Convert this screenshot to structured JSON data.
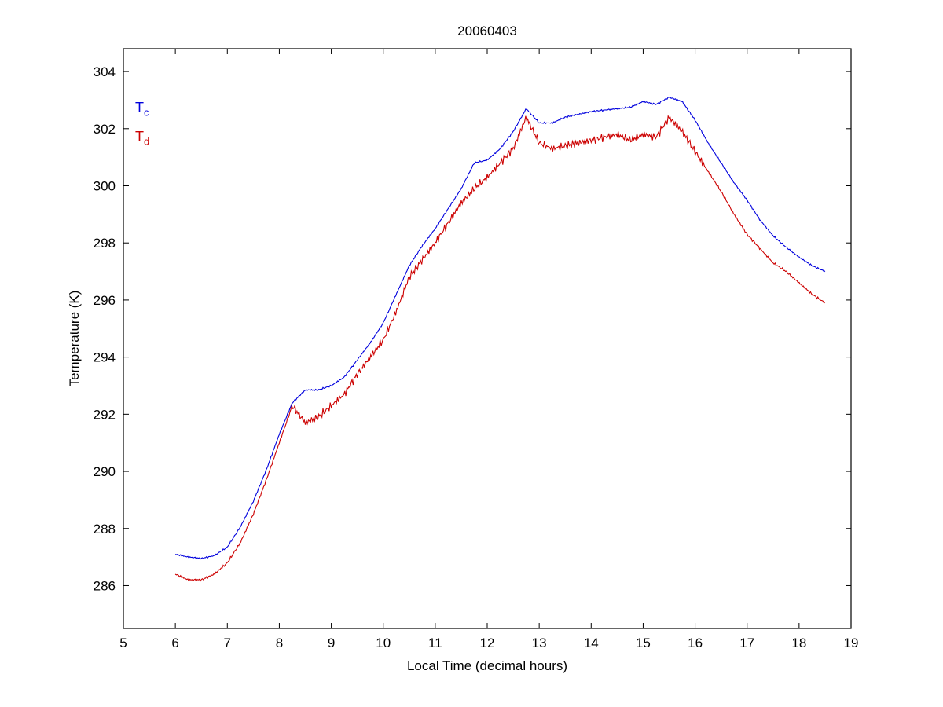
{
  "page": {
    "background": "#ffffff"
  },
  "chart_data": {
    "type": "line",
    "title": "20060403",
    "xlabel": "Local Time (decimal hours)",
    "ylabel": "Temperature (K)",
    "xlim": [
      5,
      19
    ],
    "ylim": [
      284.5,
      304.8
    ],
    "x_ticks": [
      5,
      6,
      7,
      8,
      9,
      10,
      11,
      12,
      13,
      14,
      15,
      16,
      17,
      18,
      19
    ],
    "y_ticks": [
      286,
      288,
      290,
      292,
      294,
      296,
      298,
      300,
      302,
      304
    ],
    "grid": false,
    "axis_color": "#000000",
    "legend_position": "upper-left-inside",
    "legend": [
      {
        "base": "T",
        "sub": "c"
      },
      {
        "base": "T",
        "sub": "d"
      }
    ],
    "x_start": 6.0,
    "x_step": 0.25,
    "series": [
      {
        "name": "Tc",
        "color": "#0000dd",
        "noise_amplitude": 0.035,
        "noise_full_range": [
          6.0,
          18.5
        ],
        "values": [
          287.1,
          287.0,
          286.95,
          287.05,
          287.35,
          288.05,
          288.95,
          290.05,
          291.3,
          292.4,
          292.85,
          292.85,
          293.0,
          293.3,
          293.9,
          294.5,
          295.2,
          296.2,
          297.2,
          297.9,
          298.5,
          299.2,
          299.9,
          300.8,
          300.9,
          301.3,
          301.9,
          302.7,
          302.2,
          302.2,
          302.4,
          302.5,
          302.6,
          302.65,
          302.7,
          302.75,
          302.95,
          302.85,
          303.1,
          302.95,
          302.3,
          301.5,
          300.8,
          300.1,
          299.5,
          298.8,
          298.25,
          297.85,
          297.5,
          297.2,
          297.0
        ]
      },
      {
        "name": "Td",
        "color": "#cc0000",
        "noise_amplitude": 0.17,
        "noise_full_range": [
          8.2,
          16.2
        ],
        "values": [
          286.4,
          286.2,
          286.2,
          286.4,
          286.8,
          287.5,
          288.5,
          289.7,
          291.0,
          292.3,
          291.7,
          291.9,
          292.3,
          292.7,
          293.4,
          294.0,
          294.6,
          295.6,
          296.8,
          297.4,
          298.0,
          298.7,
          299.4,
          299.9,
          300.3,
          300.8,
          301.3,
          302.4,
          301.5,
          301.3,
          301.4,
          301.5,
          301.6,
          301.7,
          301.8,
          301.6,
          301.8,
          301.7,
          302.4,
          301.9,
          301.2,
          300.5,
          299.8,
          299.0,
          298.3,
          297.8,
          297.3,
          297.0,
          296.6,
          296.2,
          295.9
        ]
      }
    ]
  }
}
